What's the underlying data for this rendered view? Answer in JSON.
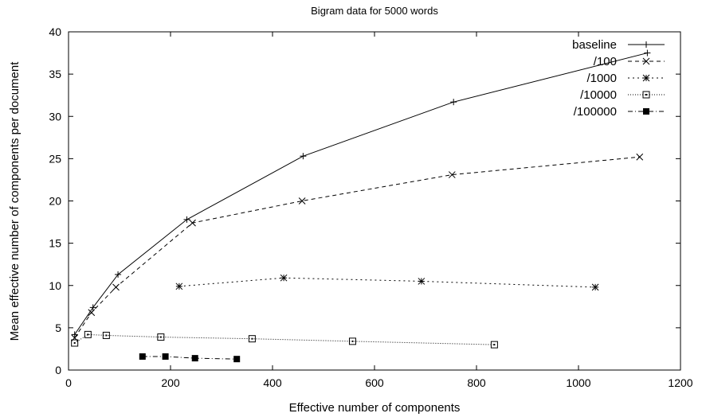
{
  "chart_data": {
    "type": "line",
    "title": "Bigram data for 5000 words",
    "xlabel": "Effective number of components",
    "ylabel": "Mean effective number of components per document",
    "xlim": [
      0,
      1200
    ],
    "ylim": [
      0,
      40
    ],
    "xticks": [
      0,
      200,
      400,
      600,
      800,
      1000,
      1200
    ],
    "yticks": [
      0,
      5,
      10,
      15,
      20,
      25,
      30,
      35,
      40
    ],
    "grid": false,
    "legend_position": "top-right",
    "series": [
      {
        "name": "baseline",
        "marker": "plus",
        "dash": "solid",
        "color": "#000000",
        "points": [
          [
            12,
            4.2
          ],
          [
            48,
            7.4
          ],
          [
            97,
            11.3
          ],
          [
            232,
            17.8
          ],
          [
            460,
            25.3
          ],
          [
            755,
            31.7
          ],
          [
            1135,
            37.5
          ]
        ]
      },
      {
        "name": "/100",
        "marker": "cross",
        "dash": "dashed",
        "color": "#000000",
        "points": [
          [
            12,
            3.8
          ],
          [
            45,
            6.8
          ],
          [
            93,
            9.8
          ],
          [
            243,
            17.4
          ],
          [
            458,
            20.0
          ],
          [
            752,
            23.1
          ],
          [
            1120,
            25.2
          ]
        ]
      },
      {
        "name": "/1000",
        "marker": "star",
        "dash": "short-dash",
        "color": "#000000",
        "points": [
          [
            217,
            9.9
          ],
          [
            422,
            10.9
          ],
          [
            692,
            10.5
          ],
          [
            1033,
            9.8
          ]
        ]
      },
      {
        "name": "/10000",
        "marker": "open-square",
        "dash": "dotted",
        "color": "#000000",
        "points": [
          [
            12,
            3.2
          ],
          [
            38,
            4.2
          ],
          [
            74,
            4.1
          ],
          [
            181,
            3.9
          ],
          [
            360,
            3.7
          ],
          [
            557,
            3.4
          ],
          [
            835,
            3.0
          ]
        ]
      },
      {
        "name": "/100000",
        "marker": "filled-square",
        "dash": "dash-dot",
        "color": "#000000",
        "points": [
          [
            145,
            1.6
          ],
          [
            190,
            1.6
          ],
          [
            248,
            1.4
          ],
          [
            330,
            1.3
          ]
        ]
      }
    ]
  }
}
